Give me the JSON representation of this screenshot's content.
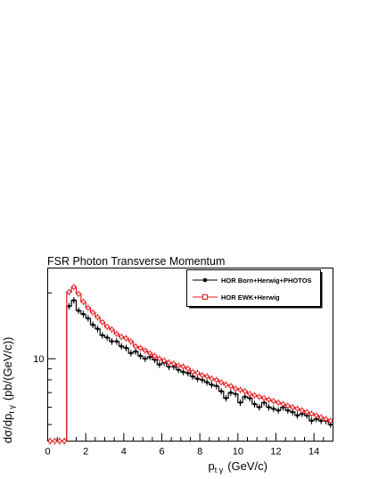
{
  "chart_data": {
    "type": "line",
    "title": "FSR Photon Transverse Momentum",
    "xlabel": "p_{t γ} (GeV/c)",
    "xlabel_main": "p",
    "xlabel_sub": "t γ",
    "xlabel_unit": "(GeV/c)",
    "ylabel": "dσ/dp_{t γ} (pb/(GeV/c))",
    "ylabel_main": "dσ/dp",
    "ylabel_sub": "t γ",
    "ylabel_unit": "(pb/(GeV/c))",
    "xlim": [
      0,
      15
    ],
    "ylim": [
      4.2,
      26
    ],
    "yscale": "log",
    "grid": false,
    "legend_position": "top-right",
    "x_ticks": [
      0,
      2,
      4,
      6,
      8,
      10,
      12,
      14
    ],
    "x_tick_labels": [
      "0",
      "2",
      "4",
      "6",
      "8",
      "10",
      "12",
      "14"
    ],
    "y_ticks": [
      10
    ],
    "y_tick_labels": [
      "10"
    ],
    "bin_width": 0.25,
    "x_bin_centers": [
      0.125,
      0.375,
      0.625,
      0.875,
      1.125,
      1.375,
      1.625,
      1.875,
      2.125,
      2.375,
      2.625,
      2.875,
      3.125,
      3.375,
      3.625,
      3.875,
      4.125,
      4.375,
      4.625,
      4.875,
      5.125,
      5.375,
      5.625,
      5.875,
      6.125,
      6.375,
      6.625,
      6.875,
      7.125,
      7.375,
      7.625,
      7.875,
      8.125,
      8.375,
      8.625,
      8.875,
      9.125,
      9.375,
      9.625,
      9.875,
      10.125,
      10.375,
      10.625,
      10.875,
      11.125,
      11.375,
      11.625,
      11.875,
      12.125,
      12.375,
      12.625,
      12.875,
      13.125,
      13.375,
      13.625,
      13.875,
      14.125,
      14.375,
      14.625,
      14.875
    ],
    "series": [
      {
        "name": "HOR Born+Herwig+PHOTOS",
        "color": "#000000",
        "marker": "filled-circle",
        "values": [
          4.2,
          4.2,
          4.2,
          4.2,
          17.4,
          18.5,
          16.6,
          16.0,
          15.3,
          14.3,
          13.7,
          12.8,
          12.5,
          12.0,
          12.0,
          11.4,
          11.2,
          10.6,
          10.8,
          10.3,
          10.0,
          10.2,
          9.9,
          9.4,
          9.6,
          9.2,
          9.2,
          8.9,
          8.7,
          8.6,
          8.3,
          8.1,
          8.0,
          7.8,
          7.6,
          7.5,
          7.1,
          6.6,
          7.0,
          6.9,
          6.3,
          6.7,
          6.6,
          6.2,
          6.0,
          6.3,
          6.0,
          5.9,
          5.8,
          6.0,
          5.8,
          5.7,
          5.5,
          5.6,
          5.5,
          5.2,
          5.3,
          5.2,
          5.2,
          5.0
        ]
      },
      {
        "name": "HOR EWK+Herwig",
        "color": "#e31a1c",
        "marker": "open-square",
        "values": [
          4.2,
          4.2,
          4.2,
          4.2,
          20.2,
          21.3,
          19.8,
          18.2,
          17.1,
          16.3,
          15.5,
          14.7,
          14.0,
          13.6,
          13.0,
          12.6,
          12.4,
          12.0,
          11.4,
          11.2,
          10.9,
          10.6,
          10.3,
          10.0,
          9.8,
          9.6,
          9.5,
          9.3,
          9.2,
          9.0,
          8.7,
          8.6,
          8.4,
          8.3,
          8.1,
          8.0,
          7.8,
          7.6,
          7.5,
          7.3,
          7.2,
          7.1,
          6.9,
          6.8,
          6.7,
          6.6,
          6.5,
          6.4,
          6.3,
          6.2,
          6.1,
          6.0,
          5.9,
          5.8,
          5.7,
          5.6,
          5.5,
          5.4,
          5.3,
          5.2
        ]
      }
    ]
  }
}
